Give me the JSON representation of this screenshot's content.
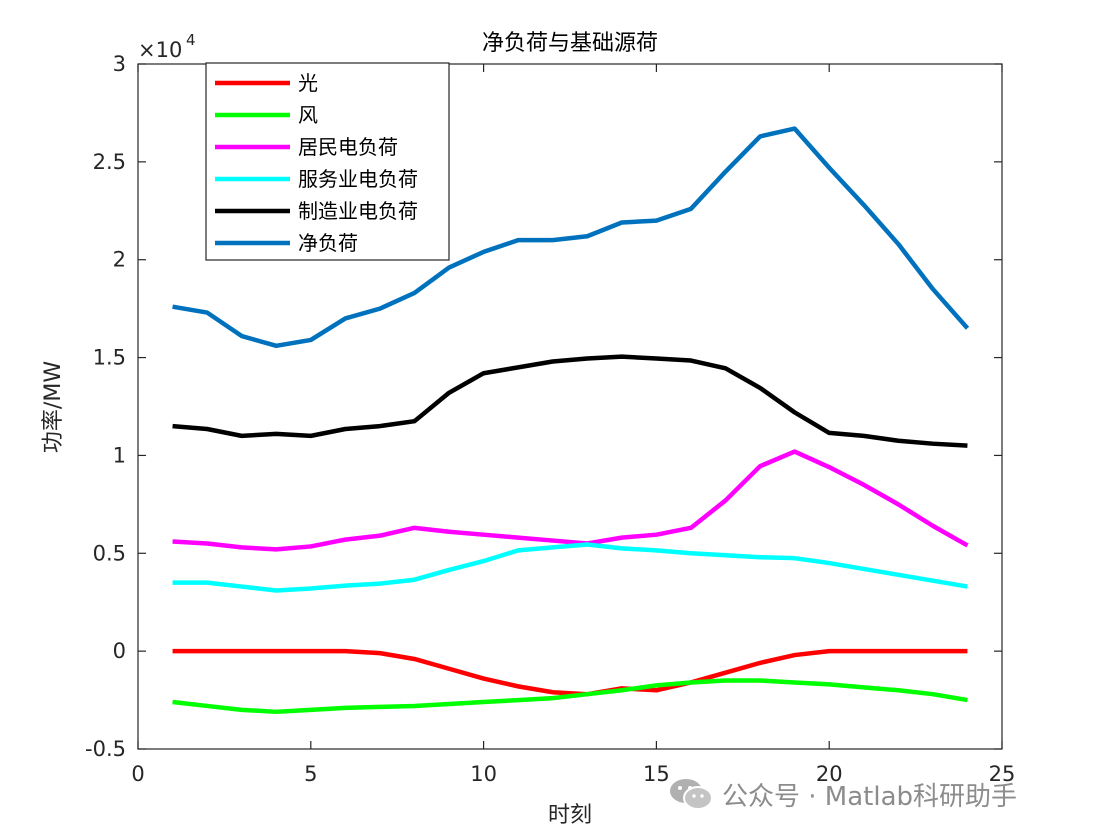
{
  "chart_data": {
    "type": "line",
    "title": "净负荷与基础源荷",
    "xlabel": "时刻",
    "ylabel": "功率/MW",
    "y_exponent_label": "×10",
    "y_exponent_power": "4",
    "y_scale_factor": 10000,
    "xlim": [
      0,
      25
    ],
    "ylim": [
      -0.5,
      3
    ],
    "xticks": [
      0,
      5,
      10,
      15,
      20,
      25
    ],
    "xtick_labels": [
      "0",
      "5",
      "10",
      "15",
      "20",
      "25"
    ],
    "yticks": [
      -0.5,
      0,
      0.5,
      1,
      1.5,
      2,
      2.5,
      3
    ],
    "ytick_labels": [
      "-0.5",
      "0",
      "0.5",
      "1",
      "1.5",
      "2",
      "2.5",
      "3"
    ],
    "legend_position": "top-left",
    "grid": false,
    "x": [
      1,
      2,
      3,
      4,
      5,
      6,
      7,
      8,
      9,
      10,
      11,
      12,
      13,
      14,
      15,
      16,
      17,
      18,
      19,
      20,
      21,
      22,
      23,
      24
    ],
    "series": [
      {
        "name": "光",
        "color": "#ff0000",
        "values": [
          0,
          0,
          0,
          0,
          0,
          0,
          -0.01,
          -0.04,
          -0.09,
          -0.14,
          -0.18,
          -0.21,
          -0.22,
          -0.19,
          -0.2,
          -0.16,
          -0.11,
          -0.06,
          -0.02,
          0,
          0,
          0,
          0,
          0
        ]
      },
      {
        "name": "风",
        "color": "#00ff00",
        "values": [
          -0.26,
          -0.28,
          -0.3,
          -0.31,
          -0.3,
          -0.29,
          -0.285,
          -0.28,
          -0.27,
          -0.26,
          -0.25,
          -0.24,
          -0.22,
          -0.2,
          -0.175,
          -0.16,
          -0.15,
          -0.15,
          -0.16,
          -0.17,
          -0.185,
          -0.2,
          -0.22,
          -0.25
        ]
      },
      {
        "name": "居民电负荷",
        "color": "#ff00ff",
        "values": [
          0.56,
          0.55,
          0.53,
          0.52,
          0.535,
          0.57,
          0.59,
          0.63,
          0.61,
          0.595,
          0.58,
          0.565,
          0.55,
          0.58,
          0.595,
          0.63,
          0.77,
          0.945,
          1.02,
          0.94,
          0.85,
          0.75,
          0.64,
          0.54
        ]
      },
      {
        "name": "服务业电负荷",
        "color": "#00ffff",
        "values": [
          0.35,
          0.35,
          0.33,
          0.31,
          0.32,
          0.335,
          0.345,
          0.365,
          0.415,
          0.46,
          0.515,
          0.53,
          0.545,
          0.525,
          0.515,
          0.5,
          0.49,
          0.48,
          0.475,
          0.45,
          0.42,
          0.39,
          0.36,
          0.33
        ]
      },
      {
        "name": "制造业电负荷",
        "color": "#000000",
        "values": [
          1.15,
          1.135,
          1.1,
          1.11,
          1.1,
          1.135,
          1.15,
          1.175,
          1.32,
          1.42,
          1.45,
          1.48,
          1.495,
          1.505,
          1.495,
          1.485,
          1.445,
          1.345,
          1.22,
          1.115,
          1.1,
          1.075,
          1.06,
          1.05
        ]
      },
      {
        "name": "净负荷",
        "color": "#0072bd",
        "values": [
          1.76,
          1.73,
          1.61,
          1.56,
          1.59,
          1.7,
          1.75,
          1.83,
          1.96,
          2.04,
          2.1,
          2.1,
          2.12,
          2.19,
          2.2,
          2.26,
          2.45,
          2.63,
          2.67,
          2.47,
          2.28,
          2.08,
          1.85,
          1.65
        ]
      }
    ]
  },
  "watermark": {
    "text": "公众号 · Matlab科研助手",
    "icon": "wechat-icon"
  }
}
